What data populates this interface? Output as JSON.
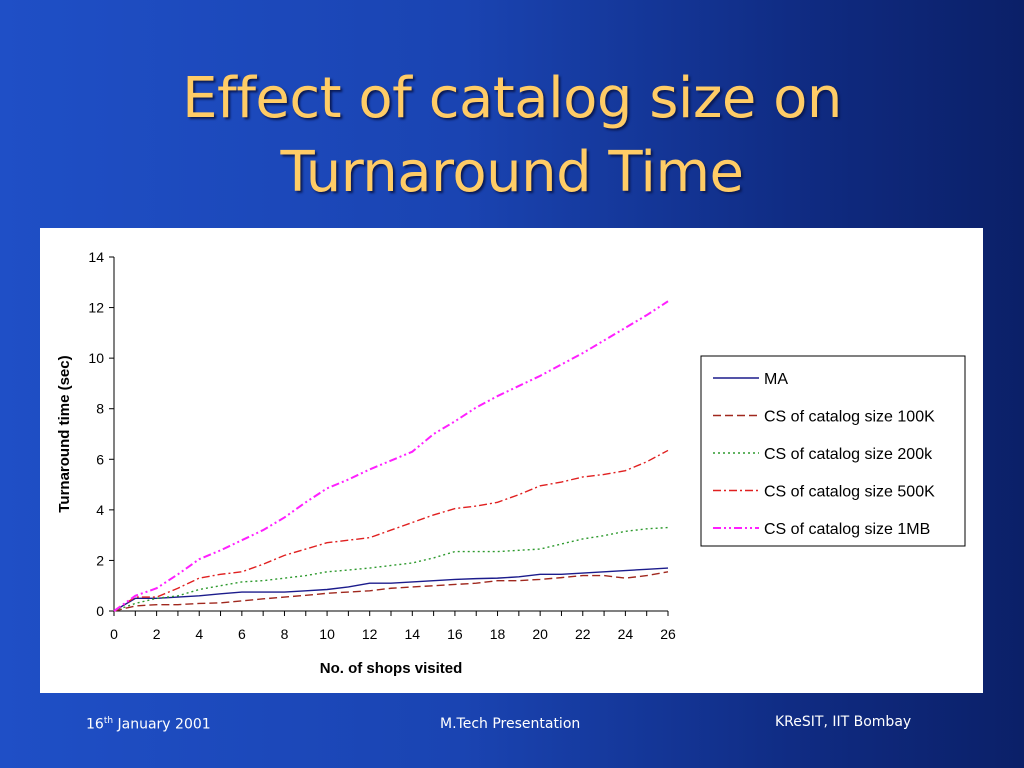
{
  "slide": {
    "title_line1": "Effect of catalog size on",
    "title_line2": "Turnaround Time",
    "footer_date_day": "16",
    "footer_date_sup": "th",
    "footer_date_rest": " January 2001",
    "footer_center": "M.Tech Presentation",
    "footer_right": "KReSIT, IIT Bombay",
    "colors": {
      "background": "#1f4fc6",
      "title": "#ffcc66"
    }
  },
  "chart_data": {
    "type": "line",
    "xlabel": "No. of shops visited",
    "ylabel": "Turnaround time (sec)",
    "xlim": [
      0,
      26
    ],
    "ylim": [
      0,
      14
    ],
    "xticks": [
      0,
      2,
      4,
      6,
      8,
      10,
      12,
      14,
      16,
      18,
      20,
      22,
      24,
      26
    ],
    "yticks": [
      0,
      2,
      4,
      6,
      8,
      10,
      12,
      14
    ],
    "grid": false,
    "legend_position": "right",
    "x": [
      0,
      1,
      2,
      3,
      4,
      5,
      6,
      7,
      8,
      9,
      10,
      11,
      12,
      13,
      14,
      15,
      16,
      17,
      18,
      19,
      20,
      21,
      22,
      23,
      24,
      25,
      26
    ],
    "series": [
      {
        "name": "MA",
        "color": "#1c1c8c",
        "dash": "",
        "values": [
          0,
          0.5,
          0.5,
          0.55,
          0.6,
          0.68,
          0.75,
          0.75,
          0.75,
          0.8,
          0.85,
          0.95,
          1.1,
          1.1,
          1.15,
          1.2,
          1.25,
          1.28,
          1.3,
          1.35,
          1.45,
          1.45,
          1.5,
          1.55,
          1.6,
          1.65,
          1.7
        ]
      },
      {
        "name": "CS of catalog size 100K",
        "color": "#a0281e",
        "dash": "8,4",
        "values": [
          0,
          0.2,
          0.25,
          0.25,
          0.3,
          0.32,
          0.4,
          0.48,
          0.55,
          0.62,
          0.7,
          0.75,
          0.8,
          0.9,
          0.95,
          1.0,
          1.05,
          1.1,
          1.2,
          1.2,
          1.25,
          1.32,
          1.4,
          1.4,
          1.3,
          1.4,
          1.55
        ]
      },
      {
        "name": "CS of catalog size 200k",
        "color": "#2e9a2e",
        "dash": "2,3",
        "values": [
          0,
          0.3,
          0.5,
          0.6,
          0.85,
          1.0,
          1.15,
          1.2,
          1.3,
          1.4,
          1.55,
          1.62,
          1.7,
          1.8,
          1.9,
          2.1,
          2.35,
          2.35,
          2.35,
          2.4,
          2.45,
          2.65,
          2.85,
          2.98,
          3.15,
          3.25,
          3.3
        ]
      },
      {
        "name": "CS of catalog size 500K",
        "color": "#e02020",
        "dash": "8,3,2,3",
        "values": [
          0,
          0.55,
          0.55,
          0.9,
          1.3,
          1.45,
          1.55,
          1.85,
          2.2,
          2.45,
          2.7,
          2.8,
          2.9,
          3.2,
          3.5,
          3.8,
          4.05,
          4.15,
          4.3,
          4.6,
          4.95,
          5.1,
          5.3,
          5.4,
          5.55,
          5.9,
          6.35
        ]
      },
      {
        "name": "CS of catalog size 1MB",
        "color": "#ff20ff",
        "dash": "8,3,2,3,2,3",
        "values": [
          0,
          0.6,
          0.9,
          1.45,
          2.05,
          2.4,
          2.8,
          3.2,
          3.7,
          4.3,
          4.85,
          5.2,
          5.6,
          5.95,
          6.3,
          7.0,
          7.5,
          8.05,
          8.5,
          8.9,
          9.3,
          9.75,
          10.2,
          10.7,
          11.2,
          11.7,
          12.25
        ]
      }
    ]
  }
}
